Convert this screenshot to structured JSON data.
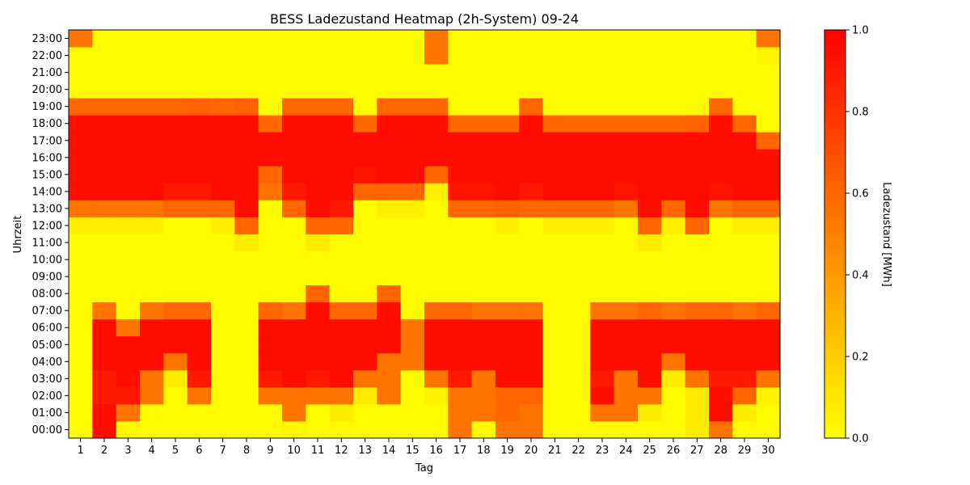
{
  "chart_data": {
    "type": "heatmap",
    "title": "BESS Ladezustand Heatmap (2h-System) 09-24",
    "xlabel": "Tag",
    "ylabel": "Uhrzeit",
    "x": [
      "1",
      "2",
      "3",
      "4",
      "5",
      "6",
      "7",
      "8",
      "9",
      "10",
      "11",
      "12",
      "13",
      "14",
      "15",
      "16",
      "17",
      "18",
      "19",
      "20",
      "21",
      "22",
      "23",
      "24",
      "25",
      "26",
      "27",
      "28",
      "29",
      "30"
    ],
    "y": [
      "00:00",
      "01:00",
      "02:00",
      "03:00",
      "04:00",
      "05:00",
      "06:00",
      "07:00",
      "08:00",
      "09:00",
      "10:00",
      "11:00",
      "12:00",
      "13:00",
      "14:00",
      "15:00",
      "16:00",
      "17:00",
      "18:00",
      "19:00",
      "20:00",
      "21:00",
      "22:00",
      "23:00"
    ],
    "colorbar": {
      "label": "Ladezustand [MWh]",
      "range": [
        0,
        1
      ],
      "ticks": [
        "0.0",
        "0.2",
        "0.4",
        "0.6",
        "0.8",
        "1.0"
      ],
      "colormap": "autumn_r",
      "colors": [
        "#ffff00",
        "#ff0000"
      ]
    },
    "values": [
      [
        0.02,
        0.95,
        0.03,
        0.02,
        0.02,
        0.02,
        0.02,
        0.02,
        0.02,
        0.03,
        0.02,
        0.02,
        0.02,
        0.02,
        0.02,
        0.02,
        0.55,
        0.02,
        0.55,
        0.55,
        0.02,
        0.02,
        0.02,
        0.02,
        0.02,
        0.02,
        0.07,
        0.55,
        0.02,
        0.02
      ],
      [
        0.02,
        0.95,
        0.55,
        0.02,
        0.02,
        0.02,
        0.02,
        0.02,
        0.02,
        0.55,
        0.02,
        0.07,
        0.02,
        0.02,
        0.02,
        0.02,
        0.55,
        0.55,
        0.6,
        0.55,
        0.02,
        0.02,
        0.55,
        0.55,
        0.07,
        0.02,
        0.07,
        0.95,
        0.07,
        0.02
      ],
      [
        0.02,
        0.9,
        0.9,
        0.55,
        0.02,
        0.55,
        0.02,
        0.02,
        0.55,
        0.55,
        0.55,
        0.55,
        0.07,
        0.55,
        0.02,
        0.05,
        0.55,
        0.55,
        0.6,
        0.6,
        0.02,
        0.02,
        0.95,
        0.55,
        0.55,
        0.02,
        0.07,
        0.95,
        0.6,
        0.05
      ],
      [
        0.02,
        0.9,
        0.95,
        0.55,
        0.07,
        0.9,
        0.02,
        0.02,
        0.9,
        0.95,
        0.9,
        0.95,
        0.55,
        0.55,
        0.02,
        0.55,
        0.9,
        0.55,
        0.95,
        0.95,
        0.02,
        0.02,
        0.9,
        0.55,
        0.95,
        0.07,
        0.55,
        0.9,
        0.9,
        0.55
      ],
      [
        0.02,
        0.95,
        0.95,
        0.95,
        0.55,
        0.95,
        0.02,
        0.02,
        0.95,
        0.95,
        0.95,
        0.95,
        0.95,
        0.55,
        0.55,
        0.95,
        0.95,
        0.95,
        0.95,
        0.95,
        0.02,
        0.02,
        0.95,
        0.95,
        0.95,
        0.55,
        0.95,
        0.95,
        0.95,
        0.95
      ],
      [
        0.02,
        0.95,
        0.95,
        0.95,
        0.95,
        0.95,
        0.02,
        0.02,
        0.95,
        0.95,
        0.95,
        0.95,
        0.95,
        0.95,
        0.55,
        0.95,
        0.95,
        0.95,
        0.95,
        0.95,
        0.02,
        0.02,
        0.95,
        0.95,
        0.95,
        0.95,
        0.95,
        0.95,
        0.95,
        0.95
      ],
      [
        0.02,
        0.95,
        0.55,
        0.95,
        0.95,
        0.95,
        0.02,
        0.02,
        0.95,
        0.95,
        0.95,
        0.95,
        0.95,
        0.95,
        0.55,
        0.95,
        0.95,
        0.95,
        0.95,
        0.95,
        0.02,
        0.02,
        0.95,
        0.95,
        0.95,
        0.95,
        0.95,
        0.95,
        0.95,
        0.95
      ],
      [
        0.02,
        0.55,
        0.02,
        0.55,
        0.6,
        0.6,
        0.02,
        0.02,
        0.6,
        0.55,
        0.95,
        0.6,
        0.6,
        0.95,
        0.02,
        0.6,
        0.6,
        0.55,
        0.55,
        0.55,
        0.02,
        0.02,
        0.55,
        0.55,
        0.6,
        0.55,
        0.6,
        0.6,
        0.55,
        0.6
      ],
      [
        0.02,
        0.02,
        0.02,
        0.02,
        0.02,
        0.02,
        0.02,
        0.02,
        0.02,
        0.02,
        0.6,
        0.02,
        0.02,
        0.6,
        0.02,
        0.02,
        0.02,
        0.02,
        0.02,
        0.02,
        0.02,
        0.02,
        0.02,
        0.02,
        0.02,
        0.02,
        0.02,
        0.02,
        0.02,
        0.02
      ],
      [
        0.02,
        0.02,
        0.02,
        0.02,
        0.02,
        0.02,
        0.02,
        0.02,
        0.02,
        0.02,
        0.02,
        0.02,
        0.02,
        0.02,
        0.02,
        0.02,
        0.02,
        0.02,
        0.02,
        0.02,
        0.02,
        0.02,
        0.02,
        0.02,
        0.02,
        0.02,
        0.02,
        0.02,
        0.02,
        0.02
      ],
      [
        0.02,
        0.02,
        0.02,
        0.02,
        0.02,
        0.02,
        0.02,
        0.02,
        0.02,
        0.02,
        0.02,
        0.02,
        0.02,
        0.02,
        0.02,
        0.02,
        0.02,
        0.02,
        0.02,
        0.02,
        0.02,
        0.02,
        0.02,
        0.02,
        0.02,
        0.02,
        0.02,
        0.02,
        0.02,
        0.02
      ],
      [
        0.02,
        0.02,
        0.02,
        0.02,
        0.02,
        0.02,
        0.02,
        0.08,
        0.02,
        0.02,
        0.08,
        0.02,
        0.02,
        0.02,
        0.02,
        0.02,
        0.02,
        0.02,
        0.02,
        0.02,
        0.02,
        0.02,
        0.02,
        0.02,
        0.08,
        0.02,
        0.02,
        0.02,
        0.02,
        0.02
      ],
      [
        0.06,
        0.06,
        0.06,
        0.06,
        0.02,
        0.02,
        0.06,
        0.6,
        0.02,
        0.02,
        0.6,
        0.6,
        0.02,
        0.02,
        0.02,
        0.02,
        0.02,
        0.02,
        0.06,
        0.02,
        0.06,
        0.06,
        0.06,
        0.02,
        0.6,
        0.06,
        0.6,
        0.02,
        0.06,
        0.06
      ],
      [
        0.55,
        0.55,
        0.55,
        0.55,
        0.6,
        0.6,
        0.6,
        0.95,
        0.02,
        0.6,
        0.95,
        0.9,
        0.02,
        0.06,
        0.06,
        0.02,
        0.6,
        0.6,
        0.62,
        0.6,
        0.6,
        0.6,
        0.6,
        0.55,
        0.95,
        0.6,
        0.95,
        0.55,
        0.6,
        0.6
      ],
      [
        0.95,
        0.95,
        0.95,
        0.95,
        0.9,
        0.9,
        0.95,
        0.95,
        0.55,
        0.9,
        0.95,
        0.95,
        0.6,
        0.6,
        0.6,
        0.06,
        0.92,
        0.92,
        0.95,
        0.9,
        0.95,
        0.95,
        0.95,
        0.92,
        0.95,
        0.95,
        0.95,
        0.92,
        0.95,
        0.95
      ],
      [
        0.95,
        0.95,
        0.95,
        0.95,
        0.95,
        0.95,
        0.95,
        0.95,
        0.6,
        0.95,
        0.95,
        0.95,
        0.92,
        0.95,
        0.95,
        0.6,
        0.95,
        0.95,
        0.95,
        0.95,
        0.95,
        0.95,
        0.95,
        0.95,
        0.95,
        0.95,
        0.95,
        0.95,
        0.95,
        0.95
      ],
      [
        0.95,
        0.95,
        0.95,
        0.95,
        0.95,
        0.95,
        0.95,
        0.95,
        0.95,
        0.95,
        0.95,
        0.95,
        0.95,
        0.95,
        0.95,
        0.95,
        0.95,
        0.95,
        0.95,
        0.95,
        0.95,
        0.95,
        0.95,
        0.95,
        0.95,
        0.95,
        0.95,
        0.95,
        0.95,
        0.95
      ],
      [
        0.95,
        0.95,
        0.95,
        0.95,
        0.95,
        0.95,
        0.95,
        0.95,
        0.95,
        0.95,
        0.95,
        0.95,
        0.95,
        0.95,
        0.95,
        0.95,
        0.95,
        0.95,
        0.95,
        0.95,
        0.95,
        0.95,
        0.95,
        0.95,
        0.95,
        0.95,
        0.95,
        0.95,
        0.95,
        0.6
      ],
      [
        0.95,
        0.95,
        0.95,
        0.95,
        0.95,
        0.95,
        0.95,
        0.95,
        0.6,
        0.95,
        0.95,
        0.95,
        0.6,
        0.95,
        0.95,
        0.95,
        0.6,
        0.6,
        0.6,
        0.95,
        0.6,
        0.6,
        0.6,
        0.6,
        0.6,
        0.6,
        0.62,
        0.95,
        0.6,
        0.02
      ],
      [
        0.6,
        0.6,
        0.6,
        0.6,
        0.6,
        0.62,
        0.6,
        0.62,
        0.02,
        0.6,
        0.6,
        0.6,
        0.02,
        0.6,
        0.6,
        0.6,
        0.02,
        0.02,
        0.02,
        0.6,
        0.02,
        0.02,
        0.02,
        0.02,
        0.02,
        0.02,
        0.02,
        0.6,
        0.02,
        0.02
      ],
      [
        0.02,
        0.02,
        0.02,
        0.02,
        0.02,
        0.02,
        0.02,
        0.02,
        0.02,
        0.02,
        0.02,
        0.02,
        0.02,
        0.02,
        0.02,
        0.02,
        0.02,
        0.02,
        0.02,
        0.02,
        0.02,
        0.02,
        0.02,
        0.02,
        0.02,
        0.02,
        0.02,
        0.02,
        0.02,
        0.02
      ],
      [
        0.02,
        0.02,
        0.02,
        0.02,
        0.02,
        0.02,
        0.02,
        0.02,
        0.02,
        0.02,
        0.02,
        0.02,
        0.02,
        0.02,
        0.02,
        0.02,
        0.02,
        0.02,
        0.02,
        0.02,
        0.02,
        0.02,
        0.02,
        0.02,
        0.02,
        0.02,
        0.02,
        0.02,
        0.02,
        0.02
      ],
      [
        0.02,
        0.02,
        0.02,
        0.02,
        0.02,
        0.02,
        0.02,
        0.02,
        0.02,
        0.02,
        0.02,
        0.02,
        0.02,
        0.02,
        0.02,
        0.55,
        0.02,
        0.02,
        0.02,
        0.02,
        0.02,
        0.02,
        0.02,
        0.02,
        0.02,
        0.02,
        0.02,
        0.02,
        0.02,
        0.04
      ],
      [
        0.55,
        0.02,
        0.02,
        0.02,
        0.02,
        0.02,
        0.02,
        0.02,
        0.02,
        0.02,
        0.02,
        0.02,
        0.02,
        0.02,
        0.02,
        0.55,
        0.02,
        0.02,
        0.02,
        0.02,
        0.02,
        0.02,
        0.02,
        0.02,
        0.02,
        0.02,
        0.02,
        0.02,
        0.02,
        0.55
      ]
    ]
  }
}
